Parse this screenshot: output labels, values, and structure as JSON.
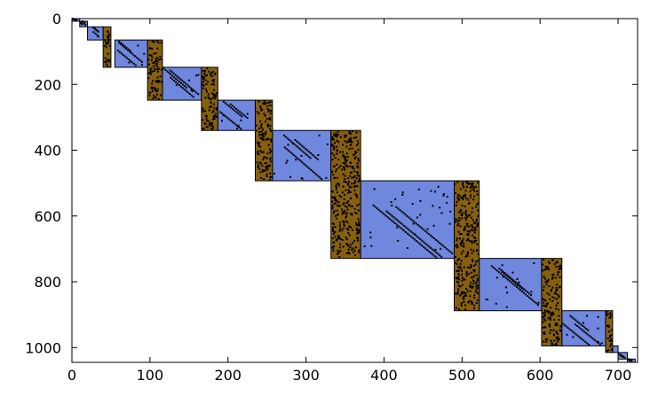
{
  "colors": {
    "diag_block": "#6f87dd",
    "border_block": "#87600d",
    "ink": "#000000"
  },
  "chart_data": {
    "type": "heatmap",
    "subtype": "sparsity-pattern",
    "title": "",
    "xlabel": "",
    "ylabel": "",
    "xlim": [
      0,
      725
    ],
    "ylim": [
      0,
      1045
    ],
    "y_axis_inverted": true,
    "grid": false,
    "x_ticks": [
      0,
      100,
      200,
      300,
      400,
      500,
      600,
      700
    ],
    "y_ticks": [
      0,
      200,
      400,
      600,
      800,
      1000
    ],
    "x_tick_labels": [
      "0",
      "100",
      "200",
      "300",
      "400",
      "500",
      "600",
      "700"
    ],
    "y_tick_labels": [
      "0",
      "200",
      "400",
      "600",
      "800",
      "1000"
    ],
    "diagonal_blocks": [
      {
        "cols": [
          0,
          10
        ],
        "rows": [
          0,
          8
        ]
      },
      {
        "cols": [
          10,
          20
        ],
        "rows": [
          8,
          25
        ]
      },
      {
        "cols": [
          20,
          40
        ],
        "rows": [
          25,
          65
        ]
      },
      {
        "cols": [
          55,
          97
        ],
        "rows": [
          65,
          148
        ]
      },
      {
        "cols": [
          116,
          166
        ],
        "rows": [
          148,
          248
        ]
      },
      {
        "cols": [
          187,
          235
        ],
        "rows": [
          248,
          340
        ]
      },
      {
        "cols": [
          257,
          332
        ],
        "rows": [
          340,
          493
        ]
      },
      {
        "cols": [
          370,
          490
        ],
        "rows": [
          493,
          729
        ]
      },
      {
        "cols": [
          522,
          602
        ],
        "rows": [
          729,
          888
        ]
      },
      {
        "cols": [
          628,
          684
        ],
        "rows": [
          888,
          995
        ]
      },
      {
        "cols": [
          693,
          700
        ],
        "rows": [
          995,
          1015
        ]
      },
      {
        "cols": [
          700,
          712
        ],
        "rows": [
          1015,
          1035
        ]
      },
      {
        "cols": [
          712,
          722
        ],
        "rows": [
          1035,
          1045
        ]
      }
    ],
    "border_blocks": [
      {
        "cols": [
          40,
          50
        ],
        "rows": [
          25,
          148
        ]
      },
      {
        "cols": [
          97,
          116
        ],
        "rows": [
          65,
          248
        ]
      },
      {
        "cols": [
          166,
          187
        ],
        "rows": [
          148,
          340
        ]
      },
      {
        "cols": [
          235,
          257
        ],
        "rows": [
          248,
          493
        ]
      },
      {
        "cols": [
          332,
          370
        ],
        "rows": [
          340,
          729
        ]
      },
      {
        "cols": [
          490,
          522
        ],
        "rows": [
          493,
          888
        ]
      },
      {
        "cols": [
          602,
          628
        ],
        "rows": [
          729,
          995
        ]
      },
      {
        "cols": [
          684,
          693
        ],
        "rows": [
          888,
          1015
        ]
      }
    ]
  }
}
